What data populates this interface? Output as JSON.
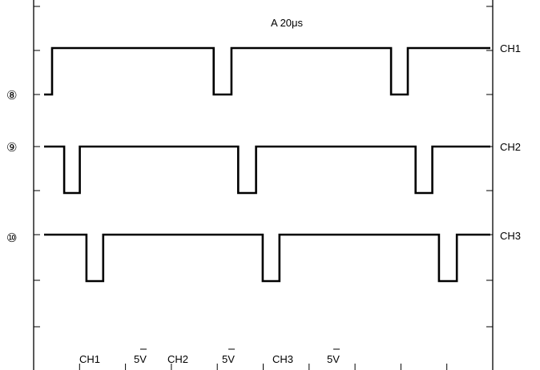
{
  "chart_data": {
    "type": "line",
    "title": "",
    "timebase": "A 20μs",
    "x_unit": "μs",
    "x_range": [
      0,
      200
    ],
    "divisions": 10,
    "series": [
      {
        "name": "CH1",
        "marker": "⑧",
        "high_level": 4.5,
        "low_level": 0,
        "x": [
          0,
          3.6,
          3.6,
          76,
          76,
          84,
          84,
          155.5,
          155.5,
          163,
          163,
          200
        ],
        "values": [
          0,
          0,
          4.5,
          4.5,
          0,
          0,
          4.5,
          4.5,
          0,
          0,
          4.5,
          4.5
        ]
      },
      {
        "name": "CH2",
        "marker": "⑨",
        "high_level": 0,
        "low_level": -4.5,
        "x": [
          0,
          9,
          9,
          16,
          16,
          87,
          87,
          95,
          95,
          166.5,
          166.5,
          174,
          174,
          200
        ],
        "values": [
          0,
          0,
          -4.5,
          -4.5,
          0,
          0,
          -4.5,
          -4.5,
          0,
          0,
          -4.5,
          -4.5,
          0,
          0
        ]
      },
      {
        "name": "CH3",
        "marker": "⑩",
        "high_level": 0,
        "low_level": -4.5,
        "x": [
          0,
          19,
          19,
          26.5,
          26.5,
          98,
          98,
          105.5,
          105.5,
          177,
          177,
          185,
          185,
          200
        ],
        "values": [
          0,
          0,
          -4.5,
          -4.5,
          0,
          0,
          -4.5,
          -4.5,
          0,
          0,
          -4.5,
          -4.5,
          0,
          0
        ]
      }
    ],
    "scale_readout": [
      {
        "channel": "CH1",
        "volts_per_div": "5V"
      },
      {
        "channel": "CH2",
        "volts_per_div": "5V"
      },
      {
        "channel": "CH3",
        "volts_per_div": "5V"
      }
    ]
  }
}
